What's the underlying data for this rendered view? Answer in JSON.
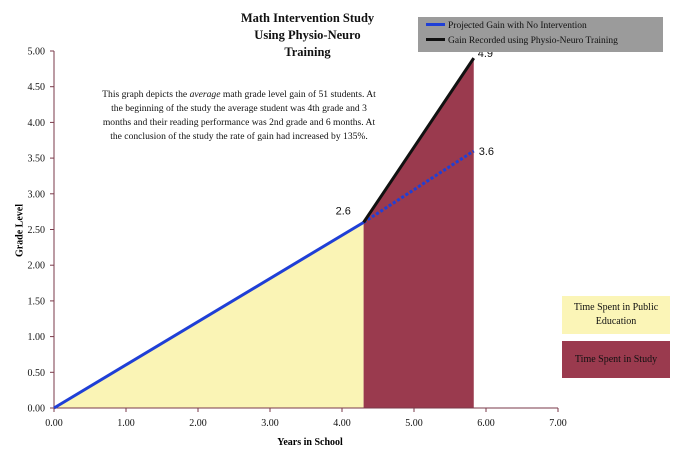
{
  "chart_data": {
    "type": "line",
    "title": "Math Intervention Study Using Physio-Neuro Training",
    "title_lines": [
      "Math Intervention Study",
      "Using Physio-Neuro",
      "Training"
    ],
    "xlabel": "Years in School",
    "ylabel": "Grade Level",
    "xlim": [
      0,
      7
    ],
    "ylim": [
      0,
      5
    ],
    "x_ticks": [
      "0.00",
      "1.00",
      "2.00",
      "3.00",
      "4.00",
      "5.00",
      "6.00",
      "7.00"
    ],
    "y_ticks": [
      "0.00",
      "0.50",
      "1.00",
      "1.50",
      "2.00",
      "2.50",
      "3.00",
      "3.50",
      "4.00",
      "4.50",
      "5.00"
    ],
    "series": [
      {
        "name": "Projected Gain with No Intervention",
        "color": "#1f3fd6",
        "points": [
          [
            0,
            0
          ],
          [
            4.3,
            2.6
          ],
          [
            5.83,
            3.6
          ]
        ]
      },
      {
        "name": "Gain Recorded using Physio-Neuro Training",
        "color": "#111111",
        "points": [
          [
            4.3,
            2.6
          ],
          [
            5.83,
            4.9
          ]
        ]
      }
    ],
    "regions": [
      {
        "label": "Time Spent in Public Education",
        "color": "#faf4b5",
        "x_range": [
          0,
          4.3
        ]
      },
      {
        "label": "Time Spent in Study",
        "color": "#9a3a4e",
        "x_range": [
          4.3,
          5.83
        ]
      }
    ],
    "data_labels": [
      {
        "text": "2.6",
        "x": 4.3,
        "y": 2.6
      },
      {
        "text": "3.6",
        "x": 5.83,
        "y": 3.6
      },
      {
        "text": "4.9",
        "x": 5.83,
        "y": 4.9
      }
    ],
    "annotation_lines": [
      "This graph depicts the average math grade level gain of 51 students.  At",
      "the beginning of the study the average student was 4th grade and 3",
      "months and their reading performance was 2nd grade and 6 months.  At",
      "the conclusion of the study the rate of gain had increased by 135%."
    ],
    "legend_placement": "top-right",
    "grid": false
  }
}
